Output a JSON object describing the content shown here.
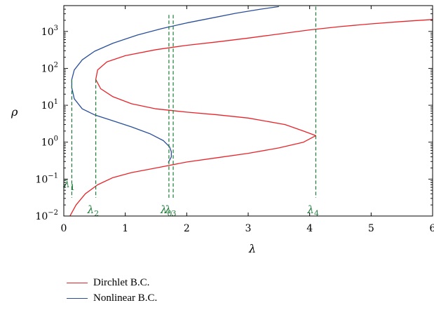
{
  "chart_data": {
    "type": "line",
    "xlabel": "λ",
    "ylabel": "ρ",
    "xlim": [
      0,
      6
    ],
    "ylim": [
      0.01,
      5000
    ],
    "yscale": "log",
    "x_ticks": [
      {
        "value": 0,
        "label": "0"
      },
      {
        "value": 1,
        "label": "1"
      },
      {
        "value": 2,
        "label": "2"
      },
      {
        "value": 3,
        "label": "3"
      },
      {
        "value": 4,
        "label": "4"
      },
      {
        "value": 5,
        "label": "5"
      },
      {
        "value": 6,
        "label": "6"
      }
    ],
    "y_ticks": [
      {
        "value": 0.01,
        "base": "10",
        "exp": "−2"
      },
      {
        "value": 0.1,
        "base": "10",
        "exp": "−1"
      },
      {
        "value": 1,
        "base": "10",
        "exp": "0"
      },
      {
        "value": 10,
        "base": "10",
        "exp": "1"
      },
      {
        "value": 100,
        "base": "10",
        "exp": "2"
      },
      {
        "value": 1000,
        "base": "10",
        "exp": "3"
      }
    ],
    "grid": false,
    "legend_position": "below",
    "series": [
      {
        "name": "Dirchlet B.C.",
        "color": "#e8242a",
        "points": [
          [
            0.1,
            0.01
          ],
          [
            0.2,
            0.02
          ],
          [
            0.35,
            0.04
          ],
          [
            0.55,
            0.07
          ],
          [
            0.8,
            0.11
          ],
          [
            1.1,
            0.15
          ],
          [
            1.5,
            0.2
          ],
          [
            2.0,
            0.29
          ],
          [
            2.5,
            0.38
          ],
          [
            3.0,
            0.5
          ],
          [
            3.5,
            0.7
          ],
          [
            3.9,
            1.0
          ],
          [
            4.1,
            1.5
          ],
          [
            3.9,
            2.0
          ],
          [
            3.6,
            3.0
          ],
          [
            3.0,
            4.5
          ],
          [
            2.5,
            5.5
          ],
          [
            2.0,
            6.5
          ],
          [
            1.5,
            8.0
          ],
          [
            1.1,
            11
          ],
          [
            0.8,
            17
          ],
          [
            0.6,
            28
          ],
          [
            0.52,
            50
          ],
          [
            0.55,
            90
          ],
          [
            0.7,
            150
          ],
          [
            1.0,
            220
          ],
          [
            1.5,
            320
          ],
          [
            2.0,
            420
          ],
          [
            2.5,
            520
          ],
          [
            3.0,
            660
          ],
          [
            3.5,
            850
          ],
          [
            4.0,
            1100
          ],
          [
            4.5,
            1350
          ],
          [
            5.0,
            1600
          ],
          [
            5.5,
            1850
          ],
          [
            6.0,
            2100
          ]
        ]
      },
      {
        "name": "Nonlinear B.C.",
        "color": "#2a4f9a",
        "points": [
          [
            1.7,
            0.28
          ],
          [
            1.75,
            0.4
          ],
          [
            1.75,
            0.55
          ],
          [
            1.72,
            0.75
          ],
          [
            1.62,
            1.1
          ],
          [
            1.4,
            1.7
          ],
          [
            1.1,
            2.6
          ],
          [
            0.8,
            3.8
          ],
          [
            0.5,
            5.5
          ],
          [
            0.3,
            8.0
          ],
          [
            0.17,
            15
          ],
          [
            0.13,
            30
          ],
          [
            0.13,
            50
          ],
          [
            0.17,
            90
          ],
          [
            0.3,
            170
          ],
          [
            0.5,
            290
          ],
          [
            0.8,
            480
          ],
          [
            1.2,
            800
          ],
          [
            1.6,
            1200
          ],
          [
            2.0,
            1700
          ],
          [
            2.4,
            2300
          ],
          [
            2.8,
            3100
          ],
          [
            3.2,
            4000
          ],
          [
            3.5,
            4700
          ]
        ]
      }
    ],
    "annotations": [
      {
        "lambda": 0.13,
        "rho_top": 50,
        "label": "λ",
        "sub": "1",
        "label_at": 0.065
      },
      {
        "lambda": 0.52,
        "rho_top": 50,
        "label": "λ",
        "sub": "2",
        "label_at": 0.013
      },
      {
        "lambda": 1.71,
        "rho_top": 2800,
        "label": "λ",
        "sub": "0",
        "label_at": 0.013
      },
      {
        "lambda": 1.78,
        "rho_top": 2800,
        "label": "λ",
        "sub": "3",
        "label_at": 0.013
      },
      {
        "lambda": 4.1,
        "rho_top": 4700,
        "label": "λ",
        "sub": "4",
        "label_at": 0.013
      }
    ],
    "annotation_color": "#1e7d3a"
  }
}
